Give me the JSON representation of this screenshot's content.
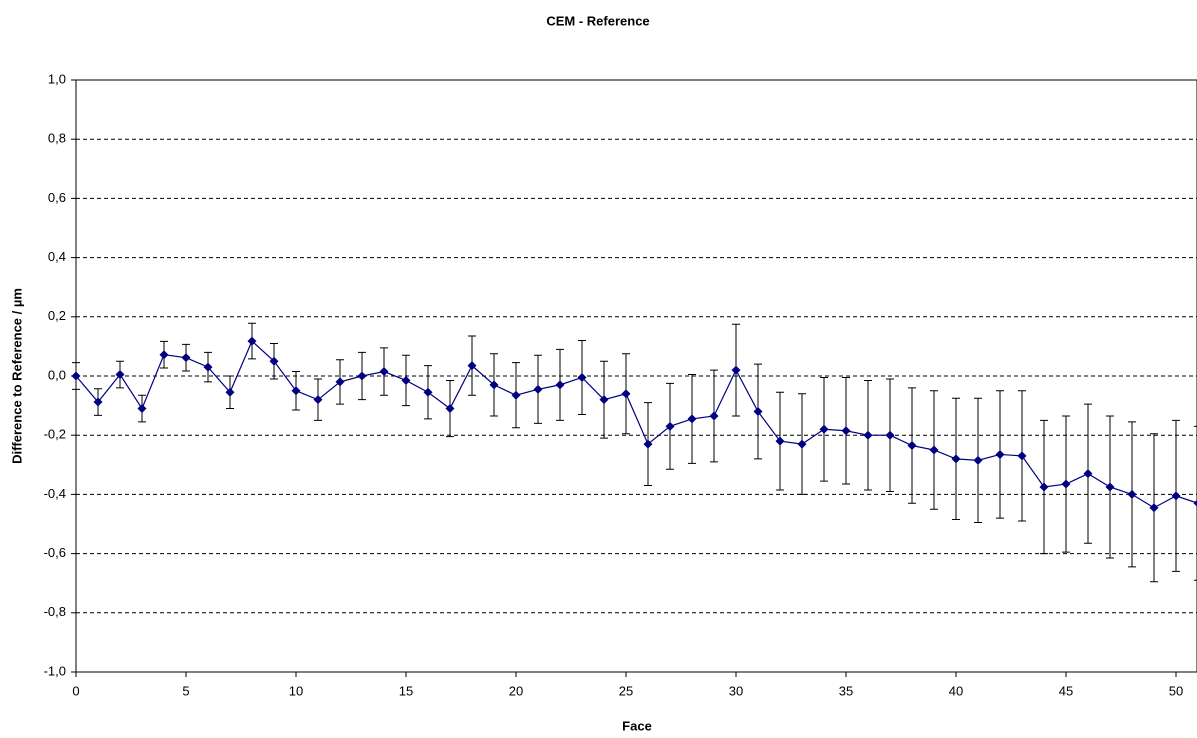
{
  "chart_data": {
    "type": "line",
    "title": "CEM - Reference",
    "x_label": "Face",
    "y_label": "Difference to Reference / µm",
    "x": [
      0,
      1,
      2,
      3,
      4,
      5,
      6,
      7,
      8,
      9,
      10,
      11,
      12,
      13,
      14,
      15,
      16,
      17,
      18,
      19,
      20,
      21,
      22,
      23,
      24,
      25,
      26,
      27,
      28,
      29,
      30,
      31,
      32,
      33,
      34,
      35,
      36,
      37,
      38,
      39,
      40,
      41,
      42,
      43,
      44,
      45,
      46,
      47,
      48,
      49,
      50,
      51
    ],
    "series": [
      {
        "color": "#000080",
        "error_color": "#000000",
        "values": [
          0.0,
          -0.088,
          0.005,
          -0.11,
          0.072,
          0.062,
          0.03,
          -0.055,
          0.118,
          0.05,
          -0.05,
          -0.08,
          -0.02,
          0.0,
          0.015,
          -0.015,
          -0.055,
          -0.11,
          0.035,
          -0.03,
          -0.065,
          -0.045,
          -0.03,
          -0.005,
          -0.08,
          -0.06,
          -0.23,
          -0.17,
          -0.145,
          -0.135,
          0.02,
          -0.12,
          -0.22,
          -0.23,
          -0.18,
          -0.185,
          -0.2,
          -0.2,
          -0.235,
          -0.25,
          -0.28,
          -0.285,
          -0.265,
          -0.27,
          -0.375,
          -0.365,
          -0.33,
          -0.375,
          -0.4,
          -0.445,
          -0.405,
          -0.43
        ],
        "errors": [
          0.045,
          0.045,
          0.045,
          0.045,
          0.045,
          0.045,
          0.05,
          0.055,
          0.06,
          0.06,
          0.065,
          0.07,
          0.075,
          0.08,
          0.08,
          0.085,
          0.09,
          0.095,
          0.1,
          0.105,
          0.11,
          0.115,
          0.12,
          0.125,
          0.13,
          0.135,
          0.14,
          0.145,
          0.15,
          0.155,
          0.155,
          0.16,
          0.165,
          0.17,
          0.175,
          0.18,
          0.185,
          0.19,
          0.195,
          0.2,
          0.205,
          0.21,
          0.215,
          0.22,
          0.225,
          0.23,
          0.235,
          0.24,
          0.245,
          0.25,
          0.255,
          0.26
        ]
      }
    ],
    "xlim": [
      0,
      51
    ],
    "xticks": [
      0,
      5,
      10,
      15,
      20,
      25,
      30,
      35,
      40,
      45,
      50
    ],
    "ylim": [
      -1,
      1
    ],
    "yticks": [
      {
        "value": -1,
        "label": "-1,0"
      },
      {
        "value": -0.8,
        "label": "-0,8"
      },
      {
        "value": -0.6,
        "label": "-0,6"
      },
      {
        "value": -0.4,
        "label": "-0,4"
      },
      {
        "value": -0.2,
        "label": "-0,2"
      },
      {
        "value": 0,
        "label": "0,0"
      },
      {
        "value": 0.2,
        "label": "0,2"
      },
      {
        "value": 0.4,
        "label": "0,4"
      },
      {
        "value": 0.6,
        "label": "0,6"
      },
      {
        "value": 0.8,
        "label": "0,8"
      },
      {
        "value": 1,
        "label": "1,0"
      }
    ],
    "grid": true
  }
}
